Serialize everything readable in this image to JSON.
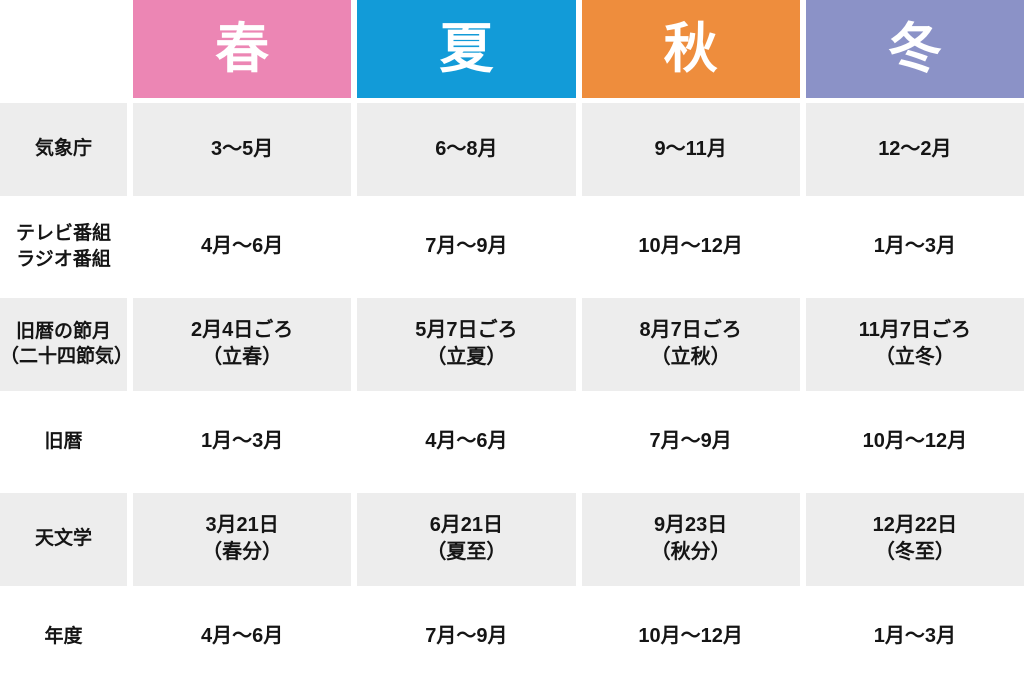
{
  "table": {
    "columns": [
      {
        "label": "春",
        "color": "#ec86b4"
      },
      {
        "label": "夏",
        "color": "#129bd8"
      },
      {
        "label": "秋",
        "color": "#ee8d3d"
      },
      {
        "label": "冬",
        "color": "#8b92c7"
      }
    ],
    "rows": [
      {
        "label": [
          "気象庁"
        ],
        "cells": [
          [
            "3〜5月"
          ],
          [
            "6〜8月"
          ],
          [
            "9〜11月"
          ],
          [
            "12〜2月"
          ]
        ]
      },
      {
        "label": [
          "テレビ番組",
          "ラジオ番組"
        ],
        "cells": [
          [
            "4月〜6月"
          ],
          [
            "7月〜9月"
          ],
          [
            "10月〜12月"
          ],
          [
            "1月〜3月"
          ]
        ]
      },
      {
        "label": [
          "旧暦の節月",
          "（二十四節気）"
        ],
        "cells": [
          [
            "2月4日ごろ",
            "（立春）"
          ],
          [
            "5月7日ごろ",
            "（立夏）"
          ],
          [
            "8月7日ごろ",
            "（立秋）"
          ],
          [
            "11月7日ごろ",
            "（立冬）"
          ]
        ]
      },
      {
        "label": [
          "旧暦"
        ],
        "cells": [
          [
            "1月〜3月"
          ],
          [
            "4月〜6月"
          ],
          [
            "7月〜9月"
          ],
          [
            "10月〜12月"
          ]
        ]
      },
      {
        "label": [
          "天文学"
        ],
        "cells": [
          [
            "3月21日",
            "（春分）"
          ],
          [
            "6月21日",
            "（夏至）"
          ],
          [
            "9月23日",
            "（秋分）"
          ],
          [
            "12月22日",
            "（冬至）"
          ]
        ]
      },
      {
        "label": [
          "年度"
        ],
        "cells": [
          [
            "4月〜6月"
          ],
          [
            "7月〜9月"
          ],
          [
            "10月〜12月"
          ],
          [
            "1月〜3月"
          ]
        ]
      }
    ]
  },
  "colors": {
    "header_text": "#ffffff",
    "cell_text": "#151515",
    "row_alt": "#ededed",
    "row_base": "#ffffff",
    "spring": "#ec86b4",
    "summer": "#129bd8",
    "autumn": "#ee8d3d",
    "winter": "#8b92c7"
  },
  "chart_data": {
    "type": "table",
    "columns": [
      "",
      "春",
      "夏",
      "秋",
      "冬"
    ],
    "rows": [
      [
        "気象庁",
        "3〜5月",
        "6〜8月",
        "9〜11月",
        "12〜2月"
      ],
      [
        "テレビ番組 ラジオ番組",
        "4月〜6月",
        "7月〜9月",
        "10月〜12月",
        "1月〜3月"
      ],
      [
        "旧暦の節月（二十四節気）",
        "2月4日ごろ（立春）",
        "5月7日ごろ（立夏）",
        "8月7日ごろ（立秋）",
        "11月7日ごろ（立冬）"
      ],
      [
        "旧暦",
        "1月〜3月",
        "4月〜6月",
        "7月〜9月",
        "10月〜12月"
      ],
      [
        "天文学",
        "3月21日（春分）",
        "6月21日（夏至）",
        "9月23日（秋分）",
        "12月22日（冬至）"
      ],
      [
        "年度",
        "4月〜6月",
        "7月〜9月",
        "10月〜12月",
        "1月〜3月"
      ]
    ],
    "header_colors": {
      "春": "#ec86b4",
      "夏": "#129bd8",
      "秋": "#ee8d3d",
      "冬": "#8b92c7"
    },
    "layout_hints": {
      "alternating_rows": true,
      "first_row_shaded": true,
      "grid": "white gutters between cells"
    }
  }
}
